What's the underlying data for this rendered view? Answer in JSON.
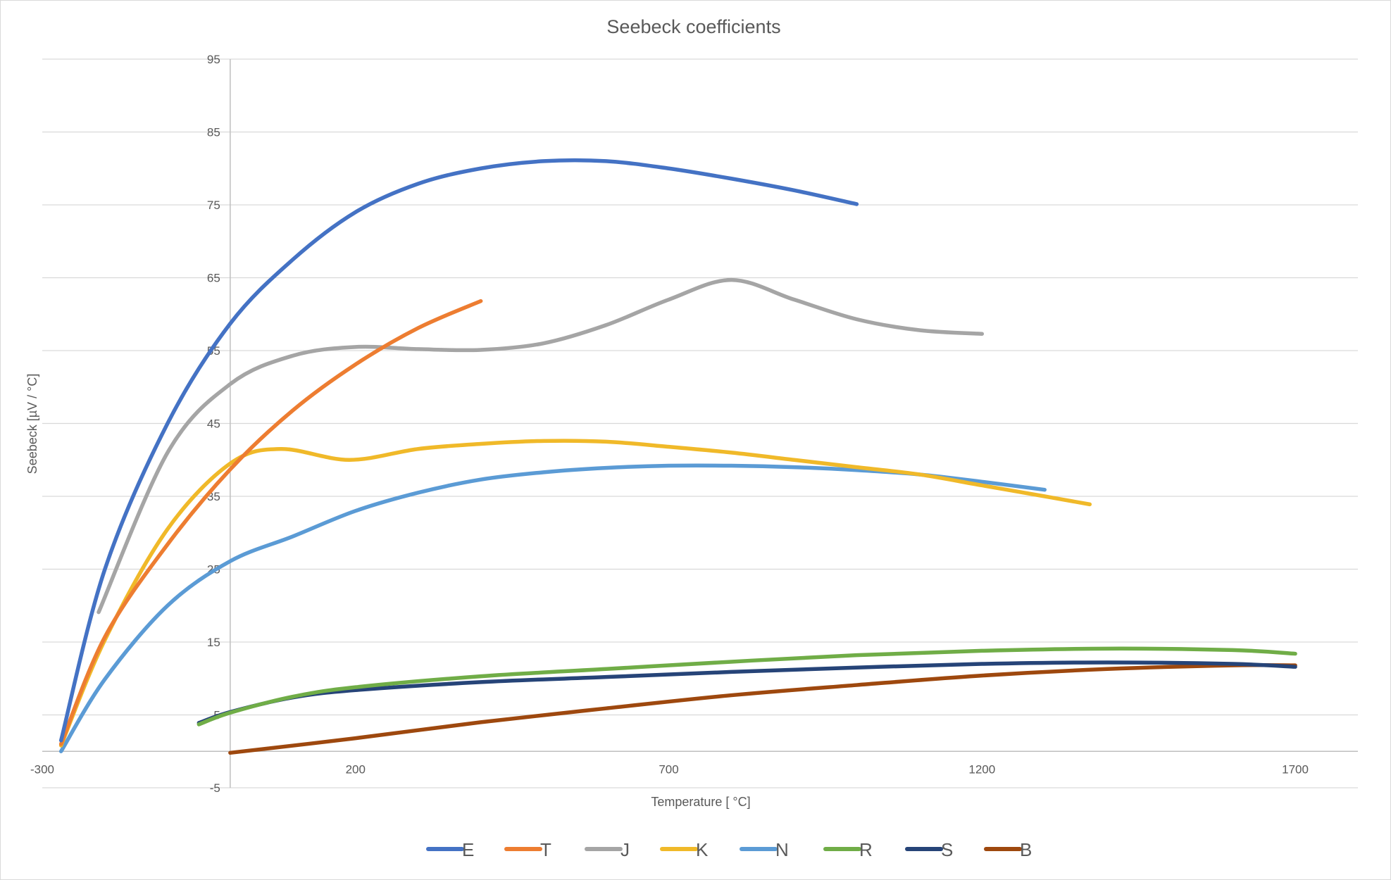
{
  "chart_data": {
    "type": "line",
    "title": "Seebeck coefficients",
    "xlabel": "Temperature  [ °C]",
    "ylabel": "Seebeck  [µV / °C]",
    "xlim": [
      -300,
      1800
    ],
    "ylim": [
      -5,
      95
    ],
    "xticks": [
      -300,
      200,
      700,
      1200,
      1700
    ],
    "yticks": [
      -5,
      5,
      15,
      25,
      35,
      45,
      55,
      65,
      75,
      85,
      95
    ],
    "grid": true,
    "legend": "bottom",
    "series": [
      {
        "name": "E",
        "color": "#4472C4",
        "points": [
          [
            -270,
            1.5
          ],
          [
            -200,
            25
          ],
          [
            -100,
            45
          ],
          [
            0,
            58.7
          ],
          [
            100,
            67.5
          ],
          [
            200,
            74
          ],
          [
            300,
            77.9
          ],
          [
            400,
            80
          ],
          [
            500,
            81
          ],
          [
            600,
            81
          ],
          [
            700,
            80
          ],
          [
            800,
            78.6
          ],
          [
            900,
            77
          ],
          [
            1000,
            75.1
          ]
        ]
      },
      {
        "name": "T",
        "color": "#ED7D31",
        "points": [
          [
            -270,
            1
          ],
          [
            -200,
            15.7
          ],
          [
            -100,
            28.4
          ],
          [
            0,
            38.7
          ],
          [
            100,
            46.8
          ],
          [
            200,
            53.1
          ],
          [
            300,
            58.1
          ],
          [
            400,
            61.8
          ]
        ]
      },
      {
        "name": "J",
        "color": "#A5A5A5",
        "points": [
          [
            -210,
            19.1
          ],
          [
            -100,
            41
          ],
          [
            0,
            50.4
          ],
          [
            100,
            54.3
          ],
          [
            200,
            55.5
          ],
          [
            300,
            55.2
          ],
          [
            400,
            55.1
          ],
          [
            500,
            56
          ],
          [
            600,
            58.5
          ],
          [
            700,
            62
          ],
          [
            800,
            64.7
          ],
          [
            900,
            62
          ],
          [
            1000,
            59.3
          ],
          [
            1100,
            57.8
          ],
          [
            1200,
            57.3
          ]
        ]
      },
      {
        "name": "K",
        "color": "#F0B929",
        "points": [
          [
            -270,
            0.8
          ],
          [
            -200,
            15.3
          ],
          [
            -100,
            30.5
          ],
          [
            0,
            39.5
          ],
          [
            80,
            41.5
          ],
          [
            190,
            40
          ],
          [
            300,
            41.5
          ],
          [
            400,
            42.2
          ],
          [
            500,
            42.6
          ],
          [
            600,
            42.5
          ],
          [
            700,
            41.8
          ],
          [
            800,
            41
          ],
          [
            900,
            40
          ],
          [
            1000,
            39
          ],
          [
            1100,
            38
          ],
          [
            1200,
            36.5
          ],
          [
            1300,
            35
          ],
          [
            1372,
            33.9
          ]
        ]
      },
      {
        "name": "N",
        "color": "#5B9BD5",
        "points": [
          [
            -270,
            0
          ],
          [
            -200,
            9.9
          ],
          [
            -100,
            20
          ],
          [
            0,
            26.1
          ],
          [
            100,
            29.5
          ],
          [
            200,
            33
          ],
          [
            300,
            35.5
          ],
          [
            400,
            37.3
          ],
          [
            500,
            38.3
          ],
          [
            600,
            38.9
          ],
          [
            700,
            39.2
          ],
          [
            800,
            39.2
          ],
          [
            900,
            39
          ],
          [
            1000,
            38.6
          ],
          [
            1100,
            38
          ],
          [
            1200,
            37
          ],
          [
            1300,
            35.9
          ]
        ]
      },
      {
        "name": "R",
        "color": "#70AD47",
        "points": [
          [
            -50,
            3.7
          ],
          [
            0,
            5.3
          ],
          [
            100,
            7.5
          ],
          [
            200,
            8.8
          ],
          [
            400,
            10.3
          ],
          [
            600,
            11.3
          ],
          [
            800,
            12.3
          ],
          [
            1000,
            13.2
          ],
          [
            1200,
            13.8
          ],
          [
            1400,
            14.1
          ],
          [
            1600,
            13.9
          ],
          [
            1700,
            13.4
          ]
        ]
      },
      {
        "name": "S",
        "color": "#264478",
        "points": [
          [
            -50,
            3.9
          ],
          [
            0,
            5.4
          ],
          [
            100,
            7.4
          ],
          [
            200,
            8.4
          ],
          [
            400,
            9.5
          ],
          [
            600,
            10.2
          ],
          [
            800,
            10.9
          ],
          [
            1000,
            11.5
          ],
          [
            1200,
            12
          ],
          [
            1400,
            12.2
          ],
          [
            1600,
            12
          ],
          [
            1700,
            11.6
          ]
        ]
      },
      {
        "name": "B",
        "color": "#9E480E",
        "points": [
          [
            0,
            -0.2
          ],
          [
            200,
            1.8
          ],
          [
            400,
            4
          ],
          [
            600,
            5.9
          ],
          [
            800,
            7.7
          ],
          [
            1000,
            9.1
          ],
          [
            1200,
            10.4
          ],
          [
            1400,
            11.3
          ],
          [
            1600,
            11.8
          ],
          [
            1700,
            11.8
          ]
        ]
      }
    ]
  }
}
